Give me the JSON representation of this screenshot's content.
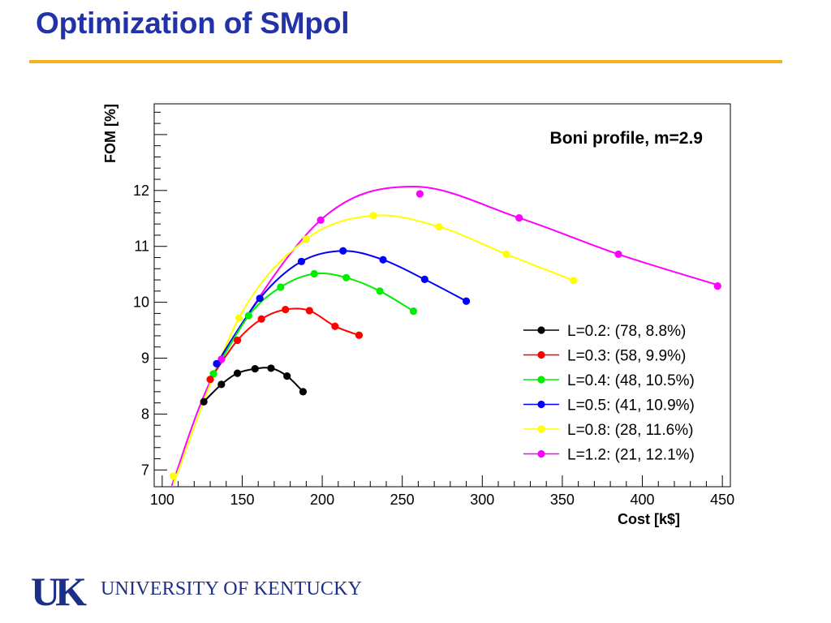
{
  "slide": {
    "title": "Optimization of SMpol",
    "footer_text": "UNIVERSITY OF KENTUCKY",
    "logo_letters": "UK",
    "accent_color": "#f2b21c",
    "title_color": "#2233a8",
    "footer_color": "#1b2f88"
  },
  "chart_data": {
    "type": "scatter",
    "title": "Boni profile, m=2.9",
    "xlabel": "Cost  [k$]",
    "ylabel": "FOM  [%]",
    "xlim": [
      95,
      455
    ],
    "ylim": [
      6.7,
      13.55
    ],
    "xticks": [
      100,
      150,
      200,
      250,
      300,
      350,
      400,
      450
    ],
    "yticks": [
      7,
      8,
      9,
      10,
      11,
      12
    ],
    "grid": false,
    "legend_position": "bottom-right",
    "series": [
      {
        "name": "L=0.2: (78, 8.8%)",
        "color": "#000000",
        "points": [
          [
            126,
            8.22
          ],
          [
            137,
            8.53
          ],
          [
            147,
            8.73
          ],
          [
            158,
            8.81
          ],
          [
            168,
            8.82
          ],
          [
            178,
            8.68
          ],
          [
            188,
            8.4
          ]
        ],
        "curve": [
          [
            126,
            8.22
          ],
          [
            137,
            8.53
          ],
          [
            147,
            8.73
          ],
          [
            158,
            8.81
          ],
          [
            168,
            8.82
          ],
          [
            178,
            8.68
          ],
          [
            188,
            8.4
          ]
        ]
      },
      {
        "name": "L=0.3: (58, 9.9%)",
        "color": "#ff0000",
        "points": [
          [
            130,
            8.62
          ],
          [
            147,
            9.32
          ],
          [
            162,
            9.7
          ],
          [
            177,
            9.87
          ],
          [
            192,
            9.85
          ],
          [
            208,
            9.57
          ],
          [
            223,
            9.41
          ]
        ],
        "curve": [
          [
            130,
            8.62
          ],
          [
            147,
            9.32
          ],
          [
            162,
            9.7
          ],
          [
            177,
            9.87
          ],
          [
            192,
            9.85
          ],
          [
            208,
            9.57
          ],
          [
            223,
            9.41
          ]
        ]
      },
      {
        "name": "L=0.4: (48, 10.5%)",
        "color": "#00ee00",
        "points": [
          [
            132,
            8.72
          ],
          [
            154,
            9.76
          ],
          [
            174,
            10.27
          ],
          [
            195,
            10.51
          ],
          [
            215,
            10.44
          ],
          [
            236,
            10.2
          ],
          [
            257,
            9.84
          ]
        ],
        "curve": [
          [
            132,
            8.72
          ],
          [
            154,
            9.76
          ],
          [
            174,
            10.27
          ],
          [
            195,
            10.51
          ],
          [
            215,
            10.44
          ],
          [
            236,
            10.2
          ],
          [
            257,
            9.84
          ]
        ]
      },
      {
        "name": "L=0.5: (41, 10.9%)",
        "color": "#0000ff",
        "points": [
          [
            134,
            8.9
          ],
          [
            161,
            10.07
          ],
          [
            187,
            10.73
          ],
          [
            213,
            10.92
          ],
          [
            238,
            10.76
          ],
          [
            264,
            10.41
          ],
          [
            290,
            10.02
          ]
        ],
        "curve": [
          [
            134,
            8.9
          ],
          [
            161,
            10.07
          ],
          [
            187,
            10.73
          ],
          [
            213,
            10.92
          ],
          [
            238,
            10.76
          ],
          [
            264,
            10.41
          ],
          [
            290,
            10.02
          ]
        ]
      },
      {
        "name": "L=0.8: (28, 11.6%)",
        "color": "#ffff00",
        "points": [
          [
            107,
            6.89
          ],
          [
            148,
            9.72
          ],
          [
            190,
            11.13
          ],
          [
            232,
            11.55
          ],
          [
            273,
            11.35
          ],
          [
            315,
            10.86
          ],
          [
            357,
            10.39
          ]
        ],
        "curve": [
          [
            107,
            6.75
          ],
          [
            148,
            9.72
          ],
          [
            190,
            11.13
          ],
          [
            232,
            11.55
          ],
          [
            273,
            11.35
          ],
          [
            315,
            10.86
          ],
          [
            357,
            10.39
          ]
        ]
      },
      {
        "name": "L=1.2: (21, 12.1%)",
        "color": "#ff00ff",
        "points": [
          [
            137,
            8.98
          ],
          [
            199,
            11.47
          ],
          [
            261,
            11.94
          ],
          [
            323,
            11.51
          ],
          [
            385,
            10.86
          ],
          [
            447,
            10.29
          ]
        ],
        "curve": [
          [
            106,
            6.72
          ],
          [
            137,
            8.98
          ],
          [
            199,
            11.47
          ],
          [
            257,
            12.07
          ],
          [
            323,
            11.51
          ],
          [
            385,
            10.86
          ],
          [
            447,
            10.31
          ]
        ]
      }
    ]
  }
}
